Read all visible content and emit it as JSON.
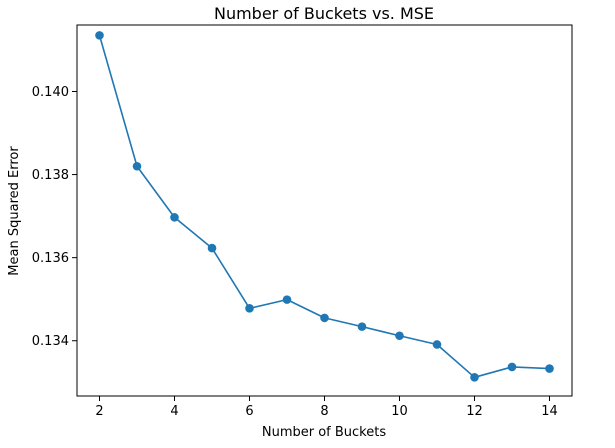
{
  "chart_data": {
    "type": "line",
    "title": "Number of Buckets vs. MSE",
    "xlabel": "Number of Buckets",
    "ylabel": "Mean Squared Error",
    "xlim": [
      1.4,
      14.6
    ],
    "ylim": [
      0.13267,
      0.1416
    ],
    "xticks": [
      2,
      4,
      6,
      8,
      10,
      12,
      14
    ],
    "yticks": [
      0.134,
      0.136,
      0.138,
      0.14
    ],
    "ytick_labels": [
      "0.134",
      "0.136",
      "0.138",
      "0.140"
    ],
    "grid": false,
    "series": [
      {
        "color": "#1f77b4",
        "marker": "circle",
        "x": [
          2,
          3,
          4,
          5,
          6,
          7,
          8,
          9,
          10,
          11,
          12,
          13,
          14
        ],
        "y": [
          0.14135,
          0.1382,
          0.13697,
          0.13623,
          0.13478,
          0.13499,
          0.13455,
          0.13434,
          0.13412,
          0.13391,
          0.13312,
          0.13337,
          0.13333
        ]
      }
    ]
  }
}
